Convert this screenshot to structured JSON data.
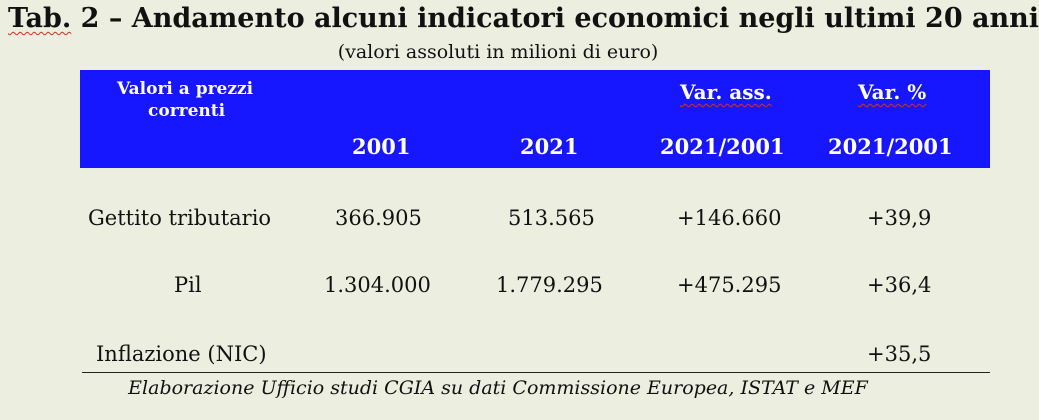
{
  "title": {
    "prefix": "Tab.",
    "rest": " 2 – Andamento alcuni indicatori economici negli ultimi 20 anni"
  },
  "subtitle": "(valori assoluti in milioni di euro)",
  "header": {
    "corner_line1": "Valori a prezzi",
    "corner_line2": "correnti",
    "col_2001": "2001",
    "col_2021": "2021",
    "var_abs_label": "Var. ass.",
    "var_abs_period": "2021/2001",
    "var_pct_label": "Var. %",
    "var_pct_period": "2021/2001"
  },
  "rows": [
    {
      "label": "Gettito tributario",
      "v2001": "366.905",
      "v2021": "513.565",
      "var_abs": "+146.660",
      "var_pct": "+39,9"
    },
    {
      "label": "Pil",
      "v2001": "1.304.000",
      "v2021": "1.779.295",
      "var_abs": "+475.295",
      "var_pct": "+36,4"
    },
    {
      "label": "Inflazione (NIC)",
      "v2001": "",
      "v2021": "",
      "var_abs": "",
      "var_pct": "+35,5"
    }
  ],
  "footnote": "Elaborazione Ufficio studi CGIA su dati Commissione Europea, ISTAT e MEF"
}
